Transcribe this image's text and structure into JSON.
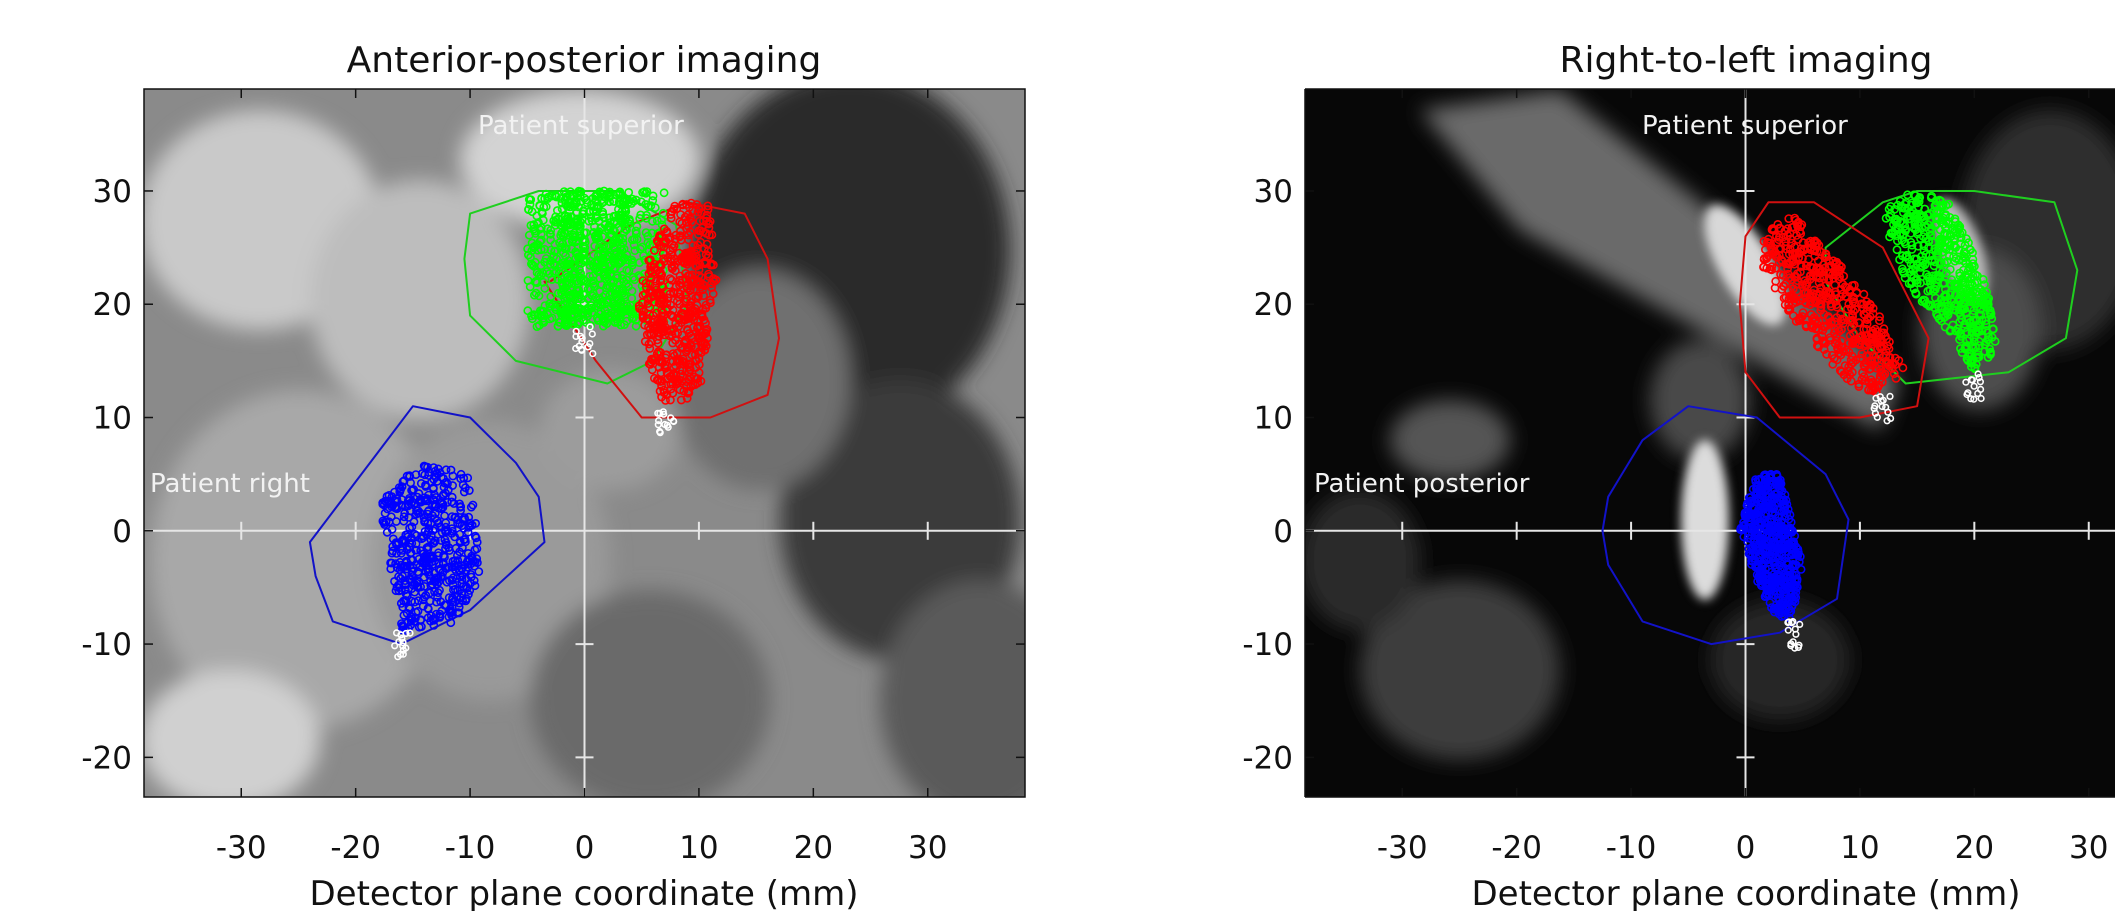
{
  "chart_data": [
    {
      "type": "scatter",
      "title": "Anterior-posterior imaging",
      "xlabel": "Detector plane coordinate (mm)",
      "ylabel": "",
      "xlim": [
        -38.5,
        38.5
      ],
      "ylim": [
        -23.5,
        39
      ],
      "xticks": [
        "-30",
        "-20",
        "-10",
        "0",
        "10",
        "20",
        "30"
      ],
      "yticks": [
        "30",
        "20",
        "10",
        "0",
        "-10",
        "-20"
      ],
      "annotations": [
        "Patient superior",
        "Patient right"
      ],
      "background": "grayscale fluoroscopic image",
      "crosshair": [
        0,
        0
      ],
      "series": [
        {
          "color": "#00ff00",
          "marker_bands": [
            [
              -5,
              18,
              0,
              30
            ],
            [
              -2,
              18,
              3.5,
              30
            ],
            [
              1,
              18,
              7,
              30
            ]
          ],
          "contour": [
            [
              -10,
              28
            ],
            [
              -4,
              30
            ],
            [
              3,
              30
            ],
            [
              8,
              27
            ],
            [
              9,
              20
            ],
            [
              6,
              15
            ],
            [
              2,
              13
            ],
            [
              -6,
              15
            ],
            [
              -10,
              19
            ],
            [
              -10.5,
              24
            ]
          ]
        },
        {
          "color": "#ff0000",
          "marker_polygon": [
            [
              5.5,
              24
            ],
            [
              8,
              29
            ],
            [
              11,
              29
            ],
            [
              11.5,
              22
            ],
            [
              10,
              12
            ],
            [
              7,
              11
            ],
            [
              5.5,
              15
            ],
            [
              4.5,
              20
            ]
          ],
          "contour": [
            [
              -3,
              22
            ],
            [
              4,
              27
            ],
            [
              9,
              29
            ],
            [
              14,
              28
            ],
            [
              16,
              24
            ],
            [
              17,
              17
            ],
            [
              16,
              12
            ],
            [
              11,
              10
            ],
            [
              5,
              10
            ],
            [
              1,
              15
            ],
            [
              -3.5,
              22
            ]
          ]
        },
        {
          "color": "#0000ff",
          "marker_polygon": [
            [
              -18,
              3
            ],
            [
              -14,
              6
            ],
            [
              -10,
              5
            ],
            [
              -9,
              -4
            ],
            [
              -11,
              -8
            ],
            [
              -16,
              -9
            ],
            [
              -17,
              -3
            ]
          ],
          "contour": [
            [
              -24,
              -1
            ],
            [
              -18,
              7
            ],
            [
              -15,
              11
            ],
            [
              -10,
              10
            ],
            [
              -6,
              6
            ],
            [
              -4,
              3
            ],
            [
              -3.5,
              -1
            ],
            [
              -10,
              -7
            ],
            [
              -16,
              -10
            ],
            [
              -22,
              -8
            ],
            [
              -23.5,
              -4
            ]
          ]
        }
      ]
    },
    {
      "type": "scatter",
      "title": "Right-to-left imaging",
      "xlabel": "Detector plane coordinate (mm)",
      "ylabel": "",
      "xlim": [
        -38.5,
        38.5
      ],
      "ylim": [
        -23.5,
        39
      ],
      "xticks": [
        "-30",
        "-20",
        "-10",
        "0",
        "10",
        "20",
        "30"
      ],
      "yticks": [
        "30",
        "20",
        "10",
        "0",
        "-10",
        "-20"
      ],
      "annotations": [
        "Patient superior",
        "Patient posterior"
      ],
      "background": "grayscale fluoroscopic image",
      "crosshair": [
        0,
        0
      ],
      "series": [
        {
          "color": "#00ff00",
          "marker_polygon": [
            [
              12.5,
              29
            ],
            [
              15,
              30
            ],
            [
              18,
              29
            ],
            [
              21,
              22
            ],
            [
              22,
              16
            ],
            [
              20,
              14
            ],
            [
              18,
              17
            ],
            [
              14,
              22
            ],
            [
              12,
              27
            ]
          ],
          "contour": [
            [
              7,
              25
            ],
            [
              12,
              29
            ],
            [
              15,
              30
            ],
            [
              20,
              30
            ],
            [
              27,
              29
            ],
            [
              29,
              23
            ],
            [
              28,
              17
            ],
            [
              23,
              14
            ],
            [
              14,
              13
            ],
            [
              10,
              17
            ],
            [
              7,
              22
            ]
          ]
        },
        {
          "color": "#ff0000",
          "marker_polygon": [
            [
              1.5,
              26
            ],
            [
              4,
              28
            ],
            [
              7,
              25
            ],
            [
              12,
              19
            ],
            [
              14,
              14
            ],
            [
              12,
              12
            ],
            [
              9,
              13
            ],
            [
              4,
              19
            ],
            [
              1.5,
              23
            ]
          ],
          "contour": [
            [
              0,
              26
            ],
            [
              2,
              29
            ],
            [
              6,
              29
            ],
            [
              12,
              25
            ],
            [
              16,
              17
            ],
            [
              15,
              11
            ],
            [
              10,
              10
            ],
            [
              3,
              10
            ],
            [
              0,
              14
            ],
            [
              -0.5,
              20
            ]
          ]
        },
        {
          "color": "#0000ff",
          "marker_polygon": [
            [
              0,
              2
            ],
            [
              1,
              5
            ],
            [
              3,
              5
            ],
            [
              4,
              1
            ],
            [
              5,
              -3
            ],
            [
              4,
              -8
            ],
            [
              2,
              -7
            ],
            [
              0.5,
              -3
            ],
            [
              -0.5,
              0
            ]
          ],
          "contour": [
            [
              -12,
              3
            ],
            [
              -9,
              8
            ],
            [
              -5,
              11
            ],
            [
              1,
              10
            ],
            [
              7,
              5
            ],
            [
              9,
              1
            ],
            [
              8,
              -6
            ],
            [
              3,
              -9
            ],
            [
              -3,
              -10
            ],
            [
              -9,
              -8
            ],
            [
              -12,
              -3
            ],
            [
              -12.5,
              0
            ]
          ]
        }
      ]
    }
  ]
}
